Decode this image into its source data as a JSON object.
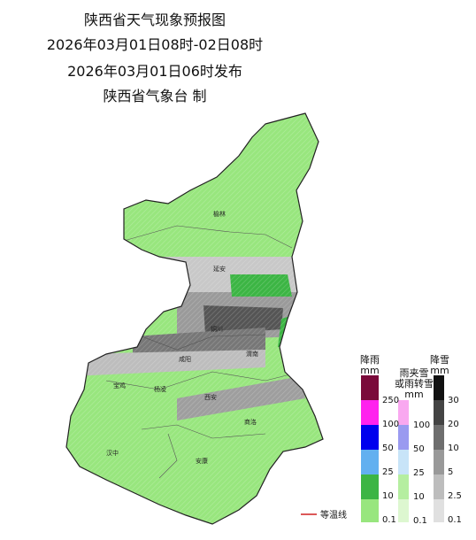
{
  "header": {
    "title": "陕西省天气现象预报图",
    "valid_time": "2026年03月01日08时-02日08时",
    "issue_time": "2026年03月01日06时发布",
    "issuer": "陕西省气象台 制"
  },
  "cities": [
    "榆林",
    "延安",
    "铜川",
    "咸阳",
    "渭南",
    "宝鸡",
    "杨凌",
    "西安",
    "商洛",
    "汉中",
    "安康"
  ],
  "legend": {
    "rain": {
      "title": "降雨",
      "unit": "mm",
      "levels": [
        250,
        100,
        50,
        25,
        10,
        0.1
      ]
    },
    "mixed": {
      "title_lines": [
        "雨夹雪",
        "或雨转雪"
      ],
      "unit": "mm",
      "levels": [
        100,
        50,
        25,
        10,
        0.1
      ]
    },
    "snow": {
      "title": "降雪",
      "unit": "mm",
      "levels": [
        30,
        20,
        10,
        5,
        2.5,
        0.1
      ]
    }
  },
  "isotherm_label": "等温线"
}
